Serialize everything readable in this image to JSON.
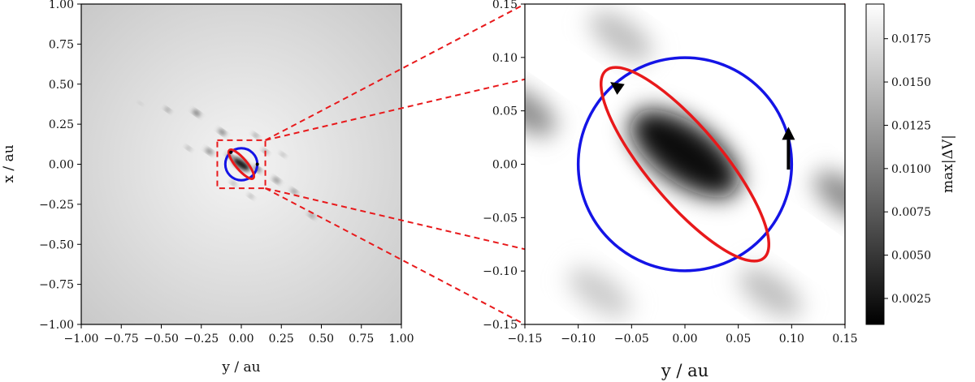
{
  "chart_data": [
    {
      "type": "heatmap",
      "panel": "full view",
      "xlabel": "y / au",
      "ylabel": "x / au",
      "xlim": [
        -1.0,
        1.0
      ],
      "ylim": [
        -1.0,
        1.0
      ],
      "xticks": [
        "−1.00",
        "−0.75",
        "−0.50",
        "−0.25",
        "0.00",
        "0.25",
        "0.50",
        "0.75",
        "1.00"
      ],
      "yticks": [
        "1.00",
        "0.75",
        "0.50",
        "0.25",
        "0.00",
        "−0.25",
        "−0.50",
        "−0.75",
        "−1.00"
      ],
      "zoom_box": {
        "y_range": [
          -0.15,
          0.15
        ],
        "x_range": [
          -0.15,
          0.15
        ],
        "color": "#e8191b",
        "style": "dashed"
      },
      "blobs": [
        {
          "y": 0.0,
          "x": 0.0,
          "r": 0.045,
          "strength": 0.95
        },
        {
          "y": -0.07,
          "x": 0.05,
          "r": 0.018,
          "strength": 0.8
        },
        {
          "y": 0.1,
          "x": -0.03,
          "r": 0.02,
          "strength": 0.8
        },
        {
          "y": -0.28,
          "x": 0.32,
          "r": 0.02,
          "strength": 0.7
        },
        {
          "y": -0.46,
          "x": 0.34,
          "r": 0.015,
          "strength": 0.6
        },
        {
          "y": -0.12,
          "x": 0.2,
          "r": 0.02,
          "strength": 0.7
        },
        {
          "y": 0.09,
          "x": 0.18,
          "r": 0.015,
          "strength": 0.6
        },
        {
          "y": 0.15,
          "x": 0.08,
          "r": 0.015,
          "strength": 0.6
        },
        {
          "y": 0.22,
          "x": -0.1,
          "r": 0.02,
          "strength": 0.6
        },
        {
          "y": 0.33,
          "x": -0.17,
          "r": 0.018,
          "strength": 0.6
        },
        {
          "y": -0.2,
          "x": 0.08,
          "r": 0.02,
          "strength": 0.65
        },
        {
          "y": 0.44,
          "x": -0.32,
          "r": 0.018,
          "strength": 0.55
        },
        {
          "y": -0.33,
          "x": 0.1,
          "r": 0.014,
          "strength": 0.5
        },
        {
          "y": 0.06,
          "x": -0.2,
          "r": 0.014,
          "strength": 0.5
        },
        {
          "y": -0.63,
          "x": 0.38,
          "r": 0.01,
          "strength": 0.35
        },
        {
          "y": 0.26,
          "x": 0.06,
          "r": 0.014,
          "strength": 0.45
        },
        {
          "y": -0.05,
          "x": -0.12,
          "r": 0.015,
          "strength": 0.5
        }
      ],
      "series": [
        {
          "name": "",
          "color": "#1414e6",
          "shape": "circle",
          "center": [
            0.0,
            0.0
          ],
          "radius": 0.1
        },
        {
          "name": "",
          "color": "#e8191b",
          "shape": "ellipse",
          "center": [
            0.0,
            0.0
          ],
          "semi_major": 0.115,
          "semi_minor": 0.035,
          "angle_deg": 130
        }
      ]
    },
    {
      "type": "heatmap",
      "panel": "zoom view",
      "xlabel": "y / au",
      "ylabel": "",
      "xlim": [
        -0.15,
        0.15
      ],
      "ylim": [
        -0.15,
        0.15
      ],
      "xticks": [
        "−0.15",
        "−0.10",
        "−0.05",
        "0.00",
        "0.05",
        "0.10",
        "0.15"
      ],
      "yticks": [
        "0.15",
        "0.10",
        "0.05",
        "0.00",
        "−0.05",
        "−0.10",
        "−0.15"
      ],
      "blobs": [
        {
          "y": 0.0,
          "x": 0.01,
          "r": 0.035,
          "strength": 0.95
        },
        {
          "y": -0.15,
          "x": 0.05,
          "r": 0.02,
          "strength": 0.45
        },
        {
          "y": 0.15,
          "x": -0.03,
          "r": 0.02,
          "strength": 0.45
        },
        {
          "y": -0.06,
          "x": 0.12,
          "r": 0.02,
          "strength": 0.25
        },
        {
          "y": 0.08,
          "x": -0.12,
          "r": 0.02,
          "strength": 0.25
        },
        {
          "y": -0.08,
          "x": -0.12,
          "r": 0.02,
          "strength": 0.2
        }
      ],
      "series": [
        {
          "name": "",
          "color": "#1414e6",
          "shape": "circle",
          "center": [
            0.0,
            0.0
          ],
          "radius": 0.1
        },
        {
          "name": "",
          "color": "#e8191b",
          "shape": "ellipse",
          "center": [
            0.0,
            0.0
          ],
          "semi_major": 0.115,
          "semi_minor": 0.035,
          "angle_deg": 130
        }
      ],
      "arrows": [
        {
          "from": [
            0.097,
            -0.005
          ],
          "to": [
            0.097,
            0.035
          ],
          "color": "#000000"
        },
        {
          "from": [
            -0.06,
            0.07
          ],
          "to": [
            -0.07,
            0.077
          ],
          "color": "#000000"
        }
      ]
    }
  ],
  "colorbar": {
    "label": "max|ΔV|",
    "ticks": [
      "0.0175",
      "0.0150",
      "0.0125",
      "0.0100",
      "0.0075",
      "0.0050",
      "0.0025"
    ],
    "range": [
      0.001,
      0.0195
    ],
    "tick_values": [
      0.0175,
      0.015,
      0.0125,
      0.01,
      0.0075,
      0.005,
      0.0025
    ]
  }
}
